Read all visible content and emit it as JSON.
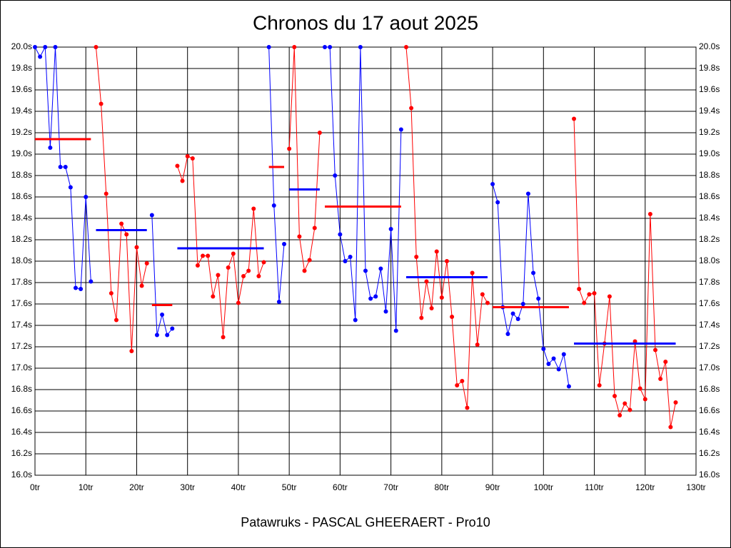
{
  "chart_data": {
    "type": "line",
    "title": "Chronos du 17 aout 2025",
    "x_label": "Patawruks - PASCAL GHEERAERT - Pro10",
    "xlim": [
      0,
      130
    ],
    "ylim": [
      16,
      20
    ],
    "grid": true,
    "xticks": [
      {
        "value": 0,
        "label": "0tr"
      },
      {
        "value": 10,
        "label": "10tr"
      },
      {
        "value": 20,
        "label": "20tr"
      },
      {
        "value": 30,
        "label": "30tr"
      },
      {
        "value": 40,
        "label": "40tr"
      },
      {
        "value": 50,
        "label": "50tr"
      },
      {
        "value": 60,
        "label": "60tr"
      },
      {
        "value": 70,
        "label": "70tr"
      },
      {
        "value": 80,
        "label": "80tr"
      },
      {
        "value": 90,
        "label": "90tr"
      },
      {
        "value": 100,
        "label": "100tr"
      },
      {
        "value": 110,
        "label": "110tr"
      },
      {
        "value": 120,
        "label": "120tr"
      },
      {
        "value": 130,
        "label": "130tr"
      }
    ],
    "yticks": [
      {
        "value": 16,
        "label": "16.0s"
      },
      {
        "value": 16.2,
        "label": "16.2s"
      },
      {
        "value": 16.4,
        "label": "16.4s"
      },
      {
        "value": 16.6,
        "label": "16.6s"
      },
      {
        "value": 16.8,
        "label": "16.8s"
      },
      {
        "value": 17,
        "label": "17.0s"
      },
      {
        "value": 17.2,
        "label": "17.2s"
      },
      {
        "value": 17.4,
        "label": "17.4s"
      },
      {
        "value": 17.6,
        "label": "17.6s"
      },
      {
        "value": 17.8,
        "label": "17.8s"
      },
      {
        "value": 18,
        "label": "18.0s"
      },
      {
        "value": 18.2,
        "label": "18.2s"
      },
      {
        "value": 18.4,
        "label": "18.4s"
      },
      {
        "value": 18.6,
        "label": "18.6s"
      },
      {
        "value": 18.8,
        "label": "18.8s"
      },
      {
        "value": 19,
        "label": "19.0s"
      },
      {
        "value": 19.2,
        "label": "19.2s"
      },
      {
        "value": 19.4,
        "label": "19.4s"
      },
      {
        "value": 19.6,
        "label": "19.6s"
      },
      {
        "value": 19.8,
        "label": "19.8s"
      },
      {
        "value": 20,
        "label": "20.0s"
      }
    ],
    "series": [
      {
        "color": "#0000ff",
        "x": [
          0,
          1,
          2,
          3,
          4,
          5,
          6,
          7,
          8,
          9,
          10,
          11
        ],
        "values": [
          20,
          19.91,
          20,
          19.06,
          20,
          18.88,
          18.88,
          18.69,
          17.75,
          17.74,
          18.6,
          17.81
        ]
      },
      {
        "color": "#ff0000",
        "x": [
          12,
          13,
          14,
          15,
          16,
          17,
          18,
          19,
          20,
          21,
          22
        ],
        "values": [
          20,
          19.47,
          18.63,
          17.7,
          17.45,
          18.35,
          18.25,
          17.16,
          18.13,
          17.77,
          17.98
        ]
      },
      {
        "color": "#0000ff",
        "x": [
          23,
          24,
          25,
          26,
          27
        ],
        "values": [
          18.43,
          17.31,
          17.5,
          17.31,
          17.37
        ]
      },
      {
        "color": "#ff0000",
        "x": [
          28,
          29,
          30,
          31,
          32,
          33,
          34,
          35,
          36,
          37,
          38,
          39,
          40,
          41,
          42,
          43,
          44,
          45
        ],
        "values": [
          18.89,
          18.75,
          18.98,
          18.96,
          17.96,
          18.05,
          18.05,
          17.67,
          17.87,
          17.29,
          17.94,
          18.07,
          17.61,
          17.86,
          17.91,
          18.49,
          17.86,
          17.99
        ]
      },
      {
        "color": "#0000ff",
        "x": [
          46,
          47,
          48,
          49
        ],
        "values": [
          20,
          18.52,
          17.62,
          18.16
        ]
      },
      {
        "color": "#ff0000",
        "x": [
          50,
          51,
          52,
          53,
          54,
          55,
          56
        ],
        "values": [
          19.05,
          20,
          18.23,
          17.91,
          18.01,
          18.31,
          19.2
        ]
      },
      {
        "color": "#0000ff",
        "x": [
          57,
          58,
          59,
          60,
          61,
          62,
          63,
          64,
          65,
          66,
          67,
          68,
          69,
          70,
          71,
          72
        ],
        "values": [
          20,
          20,
          18.8,
          18.25,
          18,
          18.04,
          17.45,
          20,
          17.91,
          17.65,
          17.67,
          17.93,
          17.53,
          18.3,
          17.35,
          19.23
        ]
      },
      {
        "color": "#ff0000",
        "x": [
          73,
          74,
          75,
          76,
          77,
          78,
          79,
          80,
          81,
          82,
          83,
          84,
          85,
          86,
          87,
          88,
          89
        ],
        "values": [
          20,
          19.43,
          18.04,
          17.47,
          17.81,
          17.56,
          18.09,
          17.66,
          18,
          17.48,
          16.84,
          16.88,
          16.63,
          17.89,
          17.22,
          17.69,
          17.61
        ]
      },
      {
        "color": "#0000ff",
        "x": [
          90,
          91,
          92,
          93,
          94,
          95,
          96,
          97,
          98,
          99,
          100,
          101,
          102,
          103,
          104,
          105
        ],
        "values": [
          18.72,
          18.55,
          17.57,
          17.32,
          17.51,
          17.46,
          17.6,
          18.63,
          17.89,
          17.65,
          17.18,
          17.04,
          17.09,
          16.99,
          17.13,
          16.83
        ]
      },
      {
        "color": "#ff0000",
        "x": [
          106,
          107,
          108,
          109,
          110,
          111,
          112,
          113,
          114,
          115,
          116,
          117,
          118,
          119,
          120,
          121,
          122,
          123,
          124,
          125,
          126
        ],
        "values": [
          19.33,
          17.74,
          17.61,
          17.69,
          17.7,
          16.84,
          17.23,
          17.67,
          16.74,
          16.56,
          16.67,
          16.61,
          17.25,
          16.81,
          16.71,
          18.44,
          17.17,
          16.9,
          17.06,
          16.45,
          16.68
        ]
      }
    ],
    "mean_lines": [
      {
        "color": "#ff0000",
        "x": [
          0,
          11
        ],
        "value": 19.14
      },
      {
        "color": "#0000ff",
        "x": [
          12,
          22
        ],
        "value": 18.29
      },
      {
        "color": "#ff0000",
        "x": [
          23,
          27
        ],
        "value": 17.59
      },
      {
        "color": "#0000ff",
        "x": [
          28,
          45
        ],
        "value": 18.12
      },
      {
        "color": "#ff0000",
        "x": [
          46,
          49
        ],
        "value": 18.88
      },
      {
        "color": "#0000ff",
        "x": [
          50,
          56
        ],
        "value": 18.67
      },
      {
        "color": "#ff0000",
        "x": [
          57,
          72
        ],
        "value": 18.51
      },
      {
        "color": "#0000ff",
        "x": [
          73,
          89
        ],
        "value": 17.85
      },
      {
        "color": "#ff0000",
        "x": [
          90,
          105
        ],
        "value": 17.57
      },
      {
        "color": "#0000ff",
        "x": [
          106,
          126
        ],
        "value": 17.23
      }
    ]
  }
}
